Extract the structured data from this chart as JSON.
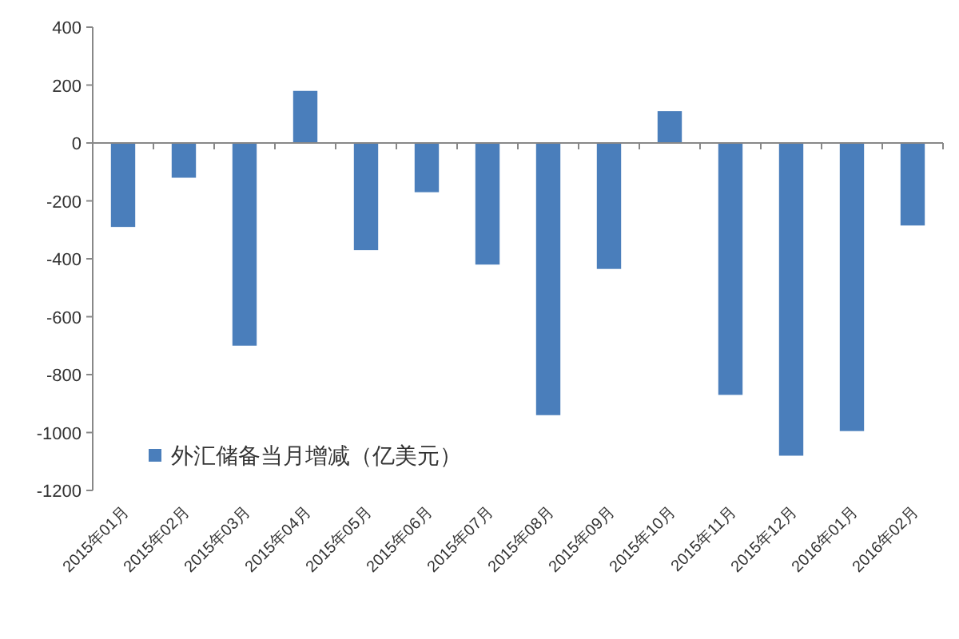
{
  "chart_data": {
    "type": "bar",
    "categories": [
      "2015年01月",
      "2015年02月",
      "2015年03月",
      "2015年04月",
      "2015年05月",
      "2015年06月",
      "2015年07月",
      "2015年08月",
      "2015年09月",
      "2015年10月",
      "2015年11月",
      "2015年12月",
      "2016年01月",
      "2016年02月"
    ],
    "series": [
      {
        "name": "外汇储备当月增减（亿美元）",
        "color": "#4a7ebb",
        "values": [
          -290,
          -120,
          -700,
          180,
          -370,
          -170,
          -420,
          -940,
          -435,
          110,
          -870,
          -1080,
          -995,
          -285
        ]
      }
    ],
    "ylim": [
      -1200,
      400
    ],
    "yticks": [
      -1200,
      -1000,
      -800,
      -600,
      -400,
      -200,
      0,
      200,
      400
    ],
    "legend": "bottom left"
  }
}
